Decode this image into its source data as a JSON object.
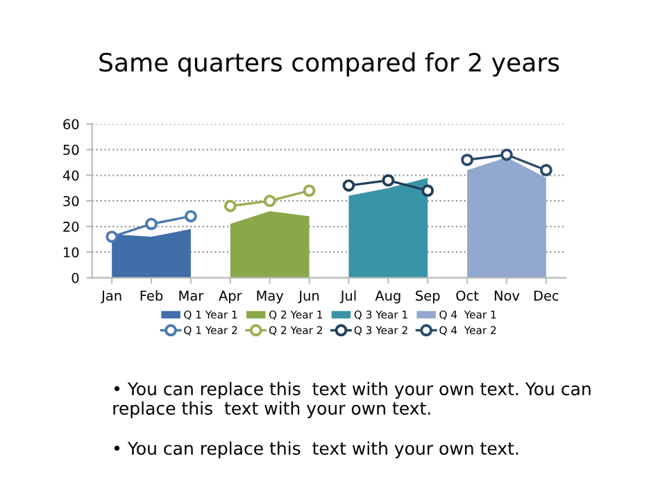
{
  "chart_data": {
    "type": "line",
    "title": "Same quarters compared for 2 years",
    "categories": [
      "Jan",
      "Feb",
      "Mar",
      "Apr",
      "May",
      "Jun",
      "Jul",
      "Aug",
      "Sep",
      "Oct",
      "Nov",
      "Dec"
    ],
    "series": [
      {
        "name": "Q 1 Year 1",
        "type": "area",
        "color": "#3f6ea8",
        "values": [
          17,
          16,
          19,
          null,
          null,
          null,
          null,
          null,
          null,
          null,
          null,
          null
        ]
      },
      {
        "name": "Q 2 Year 1",
        "type": "area",
        "color": "#8aa84a",
        "values": [
          null,
          null,
          null,
          21,
          26,
          24,
          null,
          null,
          null,
          null,
          null,
          null
        ]
      },
      {
        "name": "Q 3 Year 1",
        "type": "area",
        "color": "#3a94a8",
        "values": [
          null,
          null,
          null,
          null,
          null,
          null,
          32,
          35,
          39,
          null,
          null,
          null
        ]
      },
      {
        "name": "Q 4  Year 1",
        "type": "area",
        "color": "#93a8cf",
        "values": [
          null,
          null,
          null,
          null,
          null,
          null,
          null,
          null,
          null,
          42,
          47,
          39
        ]
      },
      {
        "name": "Q 1 Year 2",
        "marker": "circle",
        "color": "#4a7ab0",
        "values": [
          16,
          21,
          24,
          null,
          null,
          null,
          null,
          null,
          null,
          null,
          null,
          null
        ]
      },
      {
        "name": "Q 2 Year 2",
        "marker": "circle",
        "color": "#9aae50",
        "values": [
          null,
          null,
          null,
          28,
          30,
          34,
          null,
          null,
          null,
          null,
          null,
          null
        ]
      },
      {
        "name": "Q 3 Year 2",
        "marker": "circle",
        "color": "#1f3f5a",
        "values": [
          null,
          null,
          null,
          null,
          null,
          null,
          36,
          38,
          34,
          null,
          null,
          null
        ]
      },
      {
        "name": "Q 4  Year 2",
        "marker": "circle",
        "color": "#2a4a6a",
        "values": [
          null,
          null,
          null,
          null,
          null,
          null,
          null,
          null,
          null,
          46,
          48,
          42
        ]
      }
    ],
    "ylim": [
      0,
      60
    ],
    "yticks": [
      0,
      10,
      20,
      30,
      40,
      50,
      60
    ],
    "grid": "y",
    "legend": "bottom",
    "line_style": "solid",
    "annotations": [
      "• You can replace this  text with your own text. You can replace this  text with your own text.",
      "• You can replace this  text with your own text."
    ]
  }
}
